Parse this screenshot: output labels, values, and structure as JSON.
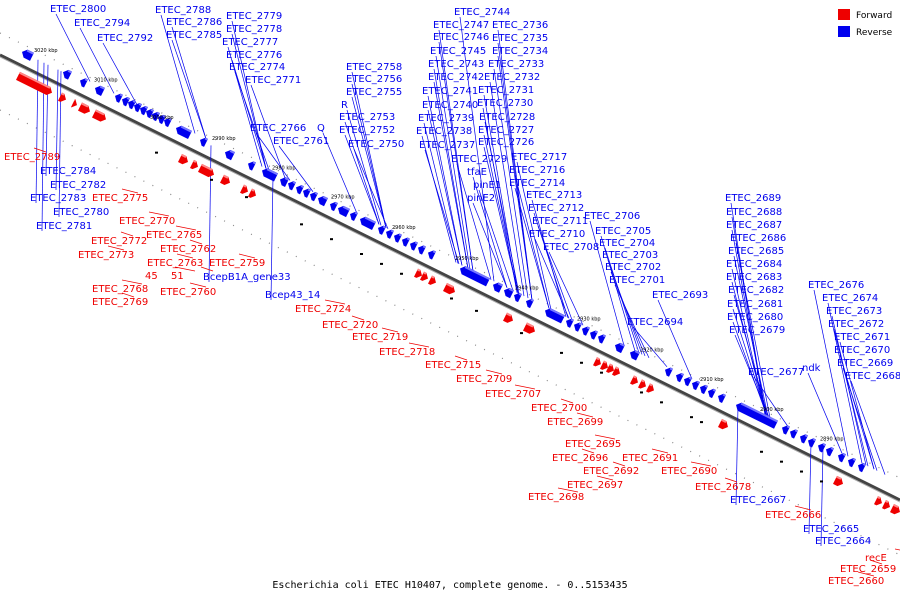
{
  "caption": "Escherichia coli ETEC H10407, complete genome. - 0..5153435",
  "legend": [
    {
      "label": "Forward",
      "color": "#ee0000"
    },
    {
      "label": "Reverse",
      "color": "#0000ee"
    }
  ],
  "ticks": [
    "3020 kbp",
    "3010 kbp",
    "3000 kbp",
    "2990 kbp",
    "2980 kbp",
    "2970 kbp",
    "2960 kbp",
    "2950 kbp",
    "2940 kbp",
    "2930 kbp",
    "2920 kbp",
    "2910 kbp",
    "2900 kbp",
    "2890 kbp"
  ],
  "reverse_labels": [
    "ETEC_2800",
    "ETEC_2794",
    "ETEC_2792",
    "ETEC_2788",
    "ETEC_2786",
    "ETEC_2785",
    "ETEC_2779",
    "ETEC_2778",
    "ETEC_2777",
    "ETEC_2776",
    "ETEC_2774",
    "ETEC_2771",
    "ETEC_2758",
    "ETEC_2756",
    "ETEC_2755",
    "R",
    "ETEC_2753",
    "ETEC_2752",
    "ETEC_2750",
    "ETEC_2766",
    "Q",
    "ETEC_2761",
    "ETEC_2744",
    "ETEC_2747",
    "ETEC_2746",
    "ETEC_2745",
    "ETEC_2743",
    "ETEC_2742",
    "ETEC_2741",
    "ETEC_2740",
    "ETEC_2739",
    "ETEC_2738",
    "ETEC_2737",
    "ETEC_2736",
    "ETEC_2735",
    "ETEC_2734",
    "ETEC_2733",
    "ETEC_2732",
    "ETEC_2731",
    "ETEC_2730",
    "ETEC_2728",
    "ETEC_2727",
    "ETEC_2726",
    "ETEC_2729",
    "tfaE",
    "pinE1",
    "pinE2",
    "ETEC_2717",
    "ETEC_2716",
    "ETEC_2714",
    "ETEC_2713",
    "ETEC_2712",
    "ETEC_2711",
    "ETEC_2710",
    "ETEC_2708",
    "ETEC_2706",
    "ETEC_2705",
    "ETEC_2704",
    "ETEC_2703",
    "ETEC_2702",
    "ETEC_2701",
    "ETEC_2693",
    "ETEC_2694",
    "ETEC_2689",
    "ETEC_2688",
    "ETEC_2687",
    "ETEC_2686",
    "ETEC_2685",
    "ETEC_2684",
    "ETEC_2683",
    "ETEC_2682",
    "ETEC_2681",
    "ETEC_2680",
    "ETEC_2679",
    "ETEC_2677",
    "ndk",
    "ETEC_2676",
    "ETEC_2674",
    "ETEC_2673",
    "ETEC_2672",
    "ETEC_2671",
    "ETEC_2670",
    "ETEC_2669",
    "ETEC_2668",
    "ETEC_2784",
    "ETEC_2782",
    "ETEC_2783",
    "ETEC_2780",
    "ETEC_2781",
    "BcepB1A_gene33",
    "Bcep43_14",
    "ETEC_2667",
    "ETEC_2665",
    "ETEC_2664"
  ],
  "forward_labels": [
    "ETEC_2789",
    "ETEC_2775",
    "ETEC_2770",
    "ETEC_2772",
    "ETEC_2773",
    "ETEC_2765",
    "ETEC_2762",
    "ETEC_2763",
    "45",
    "51",
    "ETEC_2759",
    "ETEC_2768",
    "ETEC_2769",
    "ETEC_2760",
    "ETEC_2724",
    "ETEC_2720",
    "ETEC_2719",
    "ETEC_2718",
    "ETEC_2715",
    "ETEC_2709",
    "ETEC_2707",
    "ETEC_2700",
    "ETEC_2699",
    "ETEC_2695",
    "ETEC_2696",
    "ETEC_2697",
    "ETEC_2698",
    "ETEC_2692",
    "ETEC_2691",
    "ETEC_2690",
    "ETEC_2678",
    "ETEC_2666",
    "recE",
    "ETEC_2659",
    "ETEC_2660"
  ]
}
